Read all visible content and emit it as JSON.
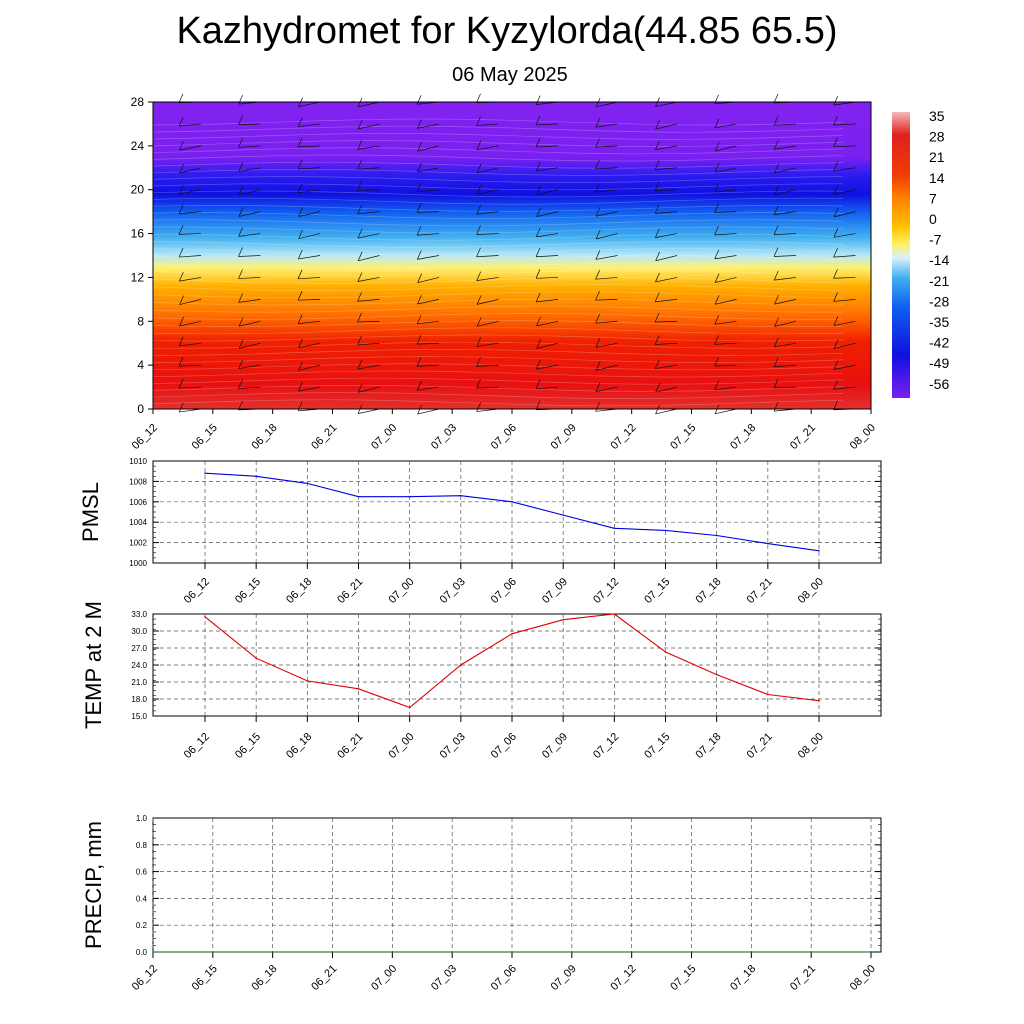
{
  "title": "Kazhydromet for Kyzylorda(44.85 65.5)",
  "subtitle": "06 May 2025",
  "time_labels": [
    "06_12",
    "06_15",
    "06_18",
    "06_21",
    "07_00",
    "07_03",
    "07_06",
    "07_09",
    "07_12",
    "07_15",
    "07_18",
    "07_21",
    "08_00"
  ],
  "chart_data": [
    {
      "type": "heatmap",
      "yticks": [
        0,
        4,
        8,
        12,
        16,
        20,
        24,
        28
      ],
      "ylim": [
        0,
        28
      ],
      "x": [
        "06_12",
        "06_15",
        "06_18",
        "06_21",
        "07_00",
        "07_03",
        "07_06",
        "07_09",
        "07_12",
        "07_15",
        "07_18",
        "07_21",
        "08_00"
      ],
      "colorbar_labels": [
        "35",
        "28",
        "21",
        "14",
        "7",
        "0",
        "-7",
        "-14",
        "-21",
        "-28",
        "-35",
        "-42",
        "-49",
        "-56"
      ],
      "colors": [
        "#f4b8b8",
        "#e02020",
        "#f03c00",
        "#ff8000",
        "#ffc000",
        "#fff060",
        "#a8e0f8",
        "#40b0f0",
        "#1060f0",
        "#1010e0",
        "#7a20f0"
      ],
      "approx_profile": [
        {
          "level": 0,
          "value": 30
        },
        {
          "level": 4,
          "value": 24
        },
        {
          "level": 8,
          "value": 14
        },
        {
          "level": 12,
          "value": 2
        },
        {
          "level": 13.5,
          "value": -14
        },
        {
          "level": 16,
          "value": -28
        },
        {
          "level": 20,
          "value": -56
        },
        {
          "level": 24,
          "value": -49
        },
        {
          "level": 28,
          "value": -49
        }
      ],
      "wind_barbs": true
    },
    {
      "type": "line",
      "ylabel": "PMSL",
      "ylim": [
        1000,
        1010
      ],
      "yticks": [
        "1000",
        "1002",
        "1004",
        "1006",
        "1008",
        "1010"
      ],
      "x": [
        "06_12",
        "06_15",
        "06_18",
        "06_21",
        "07_00",
        "07_03",
        "07_06",
        "07_09",
        "07_12",
        "07_15",
        "07_18",
        "07_21",
        "08_00"
      ],
      "series": [
        {
          "values": [
            1008.8,
            1008.5,
            1007.8,
            1006.5,
            1006.5,
            1006.6,
            1006.0,
            1004.7,
            1003.4,
            1003.2,
            1002.7,
            1001.9,
            1001.2
          ]
        }
      ],
      "color": "#0000e0",
      "grid": true
    },
    {
      "type": "line",
      "ylabel": "TEMP at 2 M",
      "ylim": [
        15,
        33
      ],
      "yticks": [
        "15.0",
        "18.0",
        "21.0",
        "24.0",
        "27.0",
        "30.0",
        "33.0"
      ],
      "x": [
        "06_12",
        "06_15",
        "06_18",
        "06_21",
        "07_00",
        "07_03",
        "07_06",
        "07_09",
        "07_12",
        "07_15",
        "07_18",
        "07_21",
        "08_00"
      ],
      "series": [
        {
          "values": [
            32.5,
            25.2,
            21.2,
            19.8,
            16.5,
            24.0,
            29.5,
            32.0,
            33.0,
            26.3,
            22.3,
            18.8,
            17.7
          ]
        }
      ],
      "color": "#e00000",
      "grid": true
    },
    {
      "type": "line",
      "ylabel": "PRECIP, mm",
      "ylim": [
        0,
        1
      ],
      "yticks": [
        "0.0",
        "0.2",
        "0.4",
        "0.6",
        "0.8",
        "1.0"
      ],
      "x": [
        "06_12",
        "06_15",
        "06_18",
        "06_21",
        "07_00",
        "07_03",
        "07_06",
        "07_09",
        "07_12",
        "07_15",
        "07_18",
        "07_21",
        "08_00"
      ],
      "series": [
        {
          "values": [
            0,
            0,
            0,
            0,
            0,
            0,
            0,
            0,
            0,
            0,
            0,
            0,
            0
          ]
        }
      ],
      "color": "#006000",
      "grid": true
    }
  ]
}
